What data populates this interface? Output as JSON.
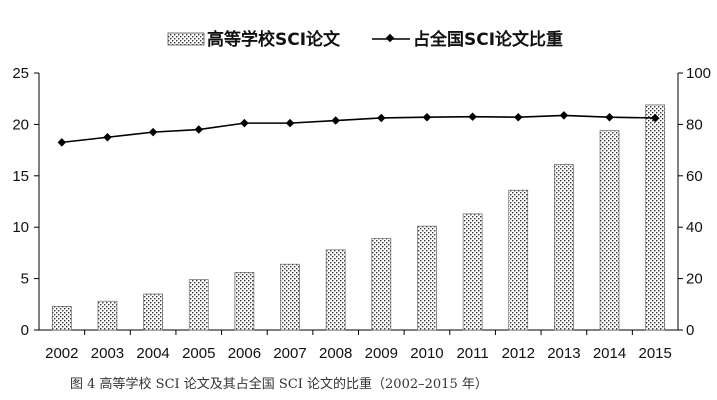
{
  "chart_data": {
    "type": "bar+line",
    "categories": [
      "2002",
      "2003",
      "2004",
      "2005",
      "2006",
      "2007",
      "2008",
      "2009",
      "2010",
      "2011",
      "2012",
      "2013",
      "2014",
      "2015"
    ],
    "series": [
      {
        "name": "高等学校SCI论文",
        "type": "bar",
        "axis": "left",
        "values": [
          2.3,
          2.8,
          3.5,
          4.9,
          5.6,
          6.4,
          7.8,
          8.9,
          10.1,
          11.3,
          13.6,
          16.1,
          19.4,
          21.9
        ]
      },
      {
        "name": "占全国SCI论文比重",
        "type": "line",
        "axis": "right",
        "values": [
          73,
          75,
          77,
          78,
          80.5,
          80.5,
          81.5,
          82.5,
          82.8,
          83,
          82.8,
          83.5,
          82.8,
          82.5
        ]
      }
    ],
    "y_left": {
      "min": 0,
      "max": 25,
      "ticks": [
        "0",
        "5",
        "10",
        "15",
        "20",
        "25"
      ]
    },
    "y_right": {
      "min": 0,
      "max": 100,
      "ticks": [
        "0",
        "20",
        "40",
        "60",
        "80",
        "100"
      ]
    },
    "legend_position": "top",
    "grid": false,
    "title": "",
    "xlabel": "",
    "ylabel": ""
  },
  "caption": "图 4  高等学校 SCI 论文及其占全国 SCI 论文的比重（2002–2015 年）",
  "colors": {
    "line": "#000000",
    "bar_fill": "#ffffff",
    "bar_dots": "#333333",
    "axis": "#000000"
  }
}
